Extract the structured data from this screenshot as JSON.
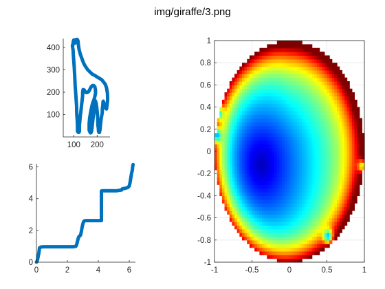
{
  "figure": {
    "title": "img/giraffe/3.png"
  },
  "chart_data": [
    {
      "type": "line",
      "name": "giraffe-outline",
      "title": "",
      "xlabel": "",
      "ylabel": "",
      "xlim": [
        55,
        255
      ],
      "ylim": [
        0,
        440
      ],
      "xticks": [
        100,
        200
      ],
      "yticks": [
        100,
        200,
        300,
        400
      ],
      "grid": false,
      "color": "#0072BD",
      "series": [
        {
          "x": [
            95,
            97,
            99,
            101,
            103,
            106,
            108,
            110,
            113,
            115,
            118,
            118,
            117,
            110,
            105,
            110,
            115,
            118,
            120,
            123,
            128,
            135,
            142,
            150,
            160,
            170,
            180,
            190,
            200,
            210,
            220,
            228,
            235,
            240,
            244,
            245,
            242,
            240,
            235,
            232,
            228,
            226,
            225,
            224,
            222,
            222,
            220,
            217,
            215,
            213,
            212,
            210,
            210,
            210,
            208,
            206,
            205,
            203,
            203,
            202,
            200,
            198,
            196,
            193,
            190,
            190,
            190,
            188,
            186,
            184,
            182,
            180,
            178,
            176,
            174,
            174,
            172,
            170,
            168,
            166,
            166,
            168,
            172,
            178,
            182,
            186,
            190,
            193,
            193,
            190,
            185,
            180,
            175,
            170,
            165,
            160,
            155,
            150,
            145,
            140,
            138,
            138,
            136,
            134,
            132,
            130,
            128,
            126,
            124,
            124,
            124,
            122,
            120,
            118,
            116,
            116,
            115,
            113,
            112,
            110,
            108,
            106,
            104,
            102,
            100,
            98,
            97,
            95,
            94,
            95
          ],
          "y": [
            405,
            420,
            432,
            434,
            430,
            420,
            425,
            434,
            436,
            430,
            428,
            430,
            432,
            432,
            433,
            435,
            436,
            430,
            410,
            390,
            370,
            350,
            330,
            315,
            300,
            290,
            280,
            275,
            268,
            262,
            255,
            245,
            235,
            220,
            195,
            165,
            140,
            125,
            130,
            140,
            155,
            160,
            155,
            140,
            125,
            110,
            98,
            80,
            60,
            40,
            30,
            30,
            25,
            20,
            20,
            25,
            40,
            55,
            75,
            90,
            115,
            135,
            150,
            160,
            165,
            162,
            150,
            135,
            110,
            95,
            80,
            60,
            40,
            25,
            22,
            20,
            18,
            20,
            25,
            30,
            60,
            85,
            110,
            140,
            155,
            165,
            180,
            195,
            210,
            225,
            230,
            230,
            225,
            215,
            205,
            200,
            198,
            200,
            210,
            212,
            200,
            185,
            165,
            150,
            130,
            110,
            95,
            70,
            50,
            35,
            25,
            20,
            20,
            22,
            25,
            45,
            70,
            100,
            140,
            170,
            200,
            230,
            270,
            310,
            340,
            370,
            390,
            400,
            410,
            405
          ]
        }
      ]
    },
    {
      "type": "line",
      "name": "cumulative-curve",
      "title": "",
      "xlabel": "",
      "ylabel": "",
      "xlim": [
        0,
        6.4
      ],
      "ylim": [
        0,
        6.2
      ],
      "xticks": [
        0,
        2,
        4,
        6
      ],
      "yticks": [
        0,
        2,
        4,
        6
      ],
      "grid": false,
      "color": "#0072BD",
      "series": [
        {
          "x": [
            0,
            0.04,
            0.08,
            0.12,
            0.16,
            0.2,
            0.3,
            0.5,
            0.8,
            1.2,
            1.6,
            2.0,
            2.4,
            2.55,
            2.6,
            2.65,
            2.7,
            2.75,
            2.8,
            2.85,
            2.9,
            2.95,
            3.0,
            3.05,
            3.1,
            3.2,
            3.4,
            3.6,
            3.8,
            4.0,
            4.2,
            4.2,
            4.25,
            4.6,
            4.9,
            5.2,
            5.5,
            5.55,
            5.7,
            5.9,
            6.0,
            6.05,
            6.1,
            6.15,
            6.2,
            6.22,
            6.25
          ],
          "y": [
            0,
            0.05,
            0.2,
            0.4,
            0.6,
            0.9,
            0.96,
            0.97,
            0.97,
            0.97,
            0.97,
            0.97,
            0.97,
            1.0,
            1.1,
            1.3,
            1.5,
            1.62,
            1.65,
            1.7,
            1.9,
            2.2,
            2.4,
            2.55,
            2.6,
            2.62,
            2.62,
            2.62,
            2.62,
            2.62,
            2.62,
            4.48,
            4.5,
            4.5,
            4.5,
            4.5,
            4.55,
            4.62,
            4.65,
            4.7,
            4.8,
            5.0,
            5.3,
            5.6,
            5.8,
            6.0,
            6.15
          ]
        }
      ]
    },
    {
      "type": "heatmap",
      "name": "disk-heatmap",
      "title": "",
      "xlabel": "",
      "ylabel": "",
      "xlim": [
        -1,
        1
      ],
      "ylim": [
        -1,
        1
      ],
      "xticks": [
        -1,
        -0.5,
        0,
        0.5,
        1
      ],
      "xtick_labels": [
        "-1",
        "-0.5",
        "0",
        "0.5",
        "1"
      ],
      "yticks": [
        -1,
        -0.8,
        -0.6,
        -0.4,
        -0.2,
        0,
        0.2,
        0.4,
        0.6,
        0.8,
        1
      ],
      "ytick_labels": [
        "-1",
        "-0.8",
        "-0.6",
        "-0.4",
        "-0.2",
        "0",
        "0.2",
        "0.4",
        "0.6",
        "0.8",
        "1"
      ],
      "grid": true,
      "colormap": "jet",
      "minimum_at": [
        -0.38,
        -0.12
      ],
      "secondary_minima": [
        [
          0.52,
          -0.77
        ],
        [
          0.98,
          -0.13
        ],
        [
          -0.95,
          0.35
        ],
        [
          -0.98,
          0.15
        ]
      ]
    }
  ]
}
